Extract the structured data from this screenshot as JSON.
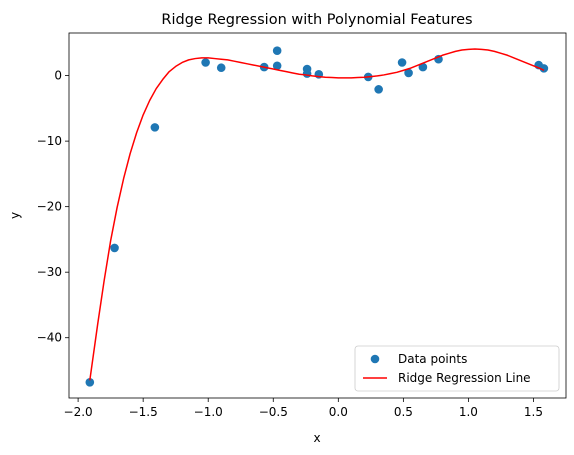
{
  "chart_data": {
    "type": "scatter",
    "title": "Ridge Regression with Polynomial Features",
    "xlabel": "x",
    "ylabel": "y",
    "xlim": [
      -2.07,
      1.75
    ],
    "ylim": [
      -49.2,
      6.5
    ],
    "xticks": [
      -2.0,
      -1.5,
      -1.0,
      -0.5,
      0.0,
      0.5,
      1.0,
      1.5
    ],
    "xtick_labels": [
      "−2.0",
      "−1.5",
      "−1.0",
      "−0.5",
      "0.0",
      "0.5",
      "1.0",
      "1.5"
    ],
    "yticks": [
      -40,
      -30,
      -20,
      -10,
      0
    ],
    "ytick_labels": [
      "−40",
      "−30",
      "−20",
      "−10",
      "0"
    ],
    "grid": false,
    "legend_position": "bottom-right",
    "series": [
      {
        "name": "Data points",
        "kind": "scatter",
        "color": "#1f77b4",
        "x": [
          -1.91,
          -1.72,
          -1.41,
          -1.02,
          -0.9,
          -0.57,
          -0.47,
          -0.47,
          -0.24,
          -0.24,
          -0.15,
          0.23,
          0.31,
          0.49,
          0.54,
          0.65,
          0.77,
          1.54,
          1.58
        ],
        "y": [
          -46.8,
          -26.3,
          -7.9,
          2.0,
          1.2,
          1.3,
          1.5,
          3.8,
          1.0,
          0.3,
          0.2,
          -0.2,
          -2.1,
          2.0,
          0.4,
          1.3,
          2.5,
          1.6,
          1.1
        ]
      },
      {
        "name": "Ridge Regression Line",
        "kind": "line",
        "color": "#ff0000",
        "x": [
          -1.91,
          -1.85,
          -1.8,
          -1.75,
          -1.7,
          -1.65,
          -1.6,
          -1.55,
          -1.5,
          -1.45,
          -1.4,
          -1.35,
          -1.3,
          -1.25,
          -1.2,
          -1.15,
          -1.1,
          -1.05,
          -1.0,
          -0.95,
          -0.9,
          -0.85,
          -0.8,
          -0.75,
          -0.7,
          -0.65,
          -0.6,
          -0.55,
          -0.5,
          -0.45,
          -0.4,
          -0.35,
          -0.3,
          -0.25,
          -0.2,
          -0.15,
          -0.1,
          -0.05,
          0.0,
          0.05,
          0.1,
          0.15,
          0.2,
          0.25,
          0.3,
          0.35,
          0.4,
          0.45,
          0.5,
          0.55,
          0.6,
          0.65,
          0.7,
          0.75,
          0.8,
          0.85,
          0.9,
          0.95,
          1.0,
          1.05,
          1.1,
          1.15,
          1.2,
          1.25,
          1.3,
          1.35,
          1.4,
          1.45,
          1.5,
          1.55,
          1.58
        ],
        "y": [
          -46.5,
          -38.0,
          -31.3,
          -25.2,
          -20.1,
          -15.7,
          -11.9,
          -8.7,
          -6.0,
          -3.8,
          -2.0,
          -0.6,
          0.6,
          1.4,
          2.0,
          2.4,
          2.6,
          2.7,
          2.7,
          2.6,
          2.5,
          2.4,
          2.2,
          2.0,
          1.8,
          1.6,
          1.4,
          1.2,
          1.0,
          0.8,
          0.6,
          0.4,
          0.2,
          0.1,
          -0.05,
          -0.15,
          -0.25,
          -0.3,
          -0.35,
          -0.35,
          -0.35,
          -0.3,
          -0.25,
          -0.15,
          -0.05,
          0.1,
          0.3,
          0.5,
          0.8,
          1.1,
          1.5,
          1.9,
          2.3,
          2.7,
          3.1,
          3.4,
          3.7,
          3.9,
          4.0,
          4.05,
          4.0,
          3.9,
          3.7,
          3.4,
          3.1,
          2.7,
          2.3,
          1.9,
          1.5,
          1.1,
          0.8
        ]
      }
    ]
  }
}
